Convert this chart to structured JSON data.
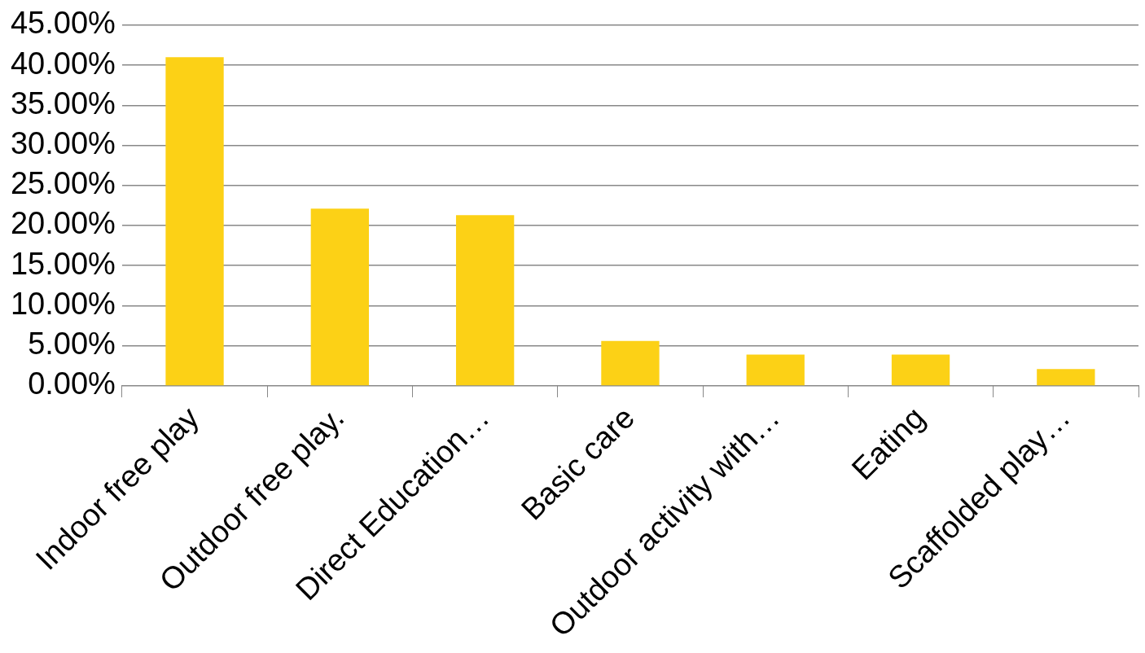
{
  "chart_data": {
    "type": "bar",
    "categories": [
      "Indoor free play",
      "Outdoor free play.",
      "Direct Education…",
      "Basic care",
      "Outdoor activity with…",
      "Eating",
      "Scaffolded play…"
    ],
    "values": [
      41.0,
      22.1,
      21.3,
      5.6,
      3.9,
      3.9,
      2.1
    ],
    "color": "#fcd116",
    "ylim": [
      0,
      45
    ],
    "yticks": [
      {
        "value": 0,
        "label": "0.00%"
      },
      {
        "value": 5,
        "label": "5.00%"
      },
      {
        "value": 10,
        "label": "10.00%"
      },
      {
        "value": 15,
        "label": "15.00%"
      },
      {
        "value": 20,
        "label": "20.00%"
      },
      {
        "value": 25,
        "label": "25.00%"
      },
      {
        "value": 30,
        "label": "30.00%"
      },
      {
        "value": 35,
        "label": "35.00%"
      },
      {
        "value": 40,
        "label": "40.00%"
      },
      {
        "value": 45,
        "label": "45.00%"
      }
    ],
    "grid": "y"
  }
}
